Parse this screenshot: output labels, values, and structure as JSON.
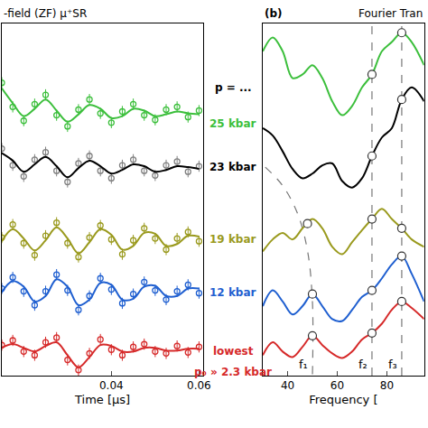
{
  "chart_data": [
    {
      "type": "scatter",
      "title": "-field (ZF) μ⁺SR",
      "x_label": "Time [μs]",
      "x": [
        0.015,
        0.0175,
        0.02,
        0.0225,
        0.025,
        0.0275,
        0.03,
        0.0325,
        0.035,
        0.0375,
        0.04,
        0.0425,
        0.045,
        0.0475,
        0.05,
        0.0525,
        0.055,
        0.0575,
        0.06
      ],
      "xlim": [
        0.015,
        0.061
      ],
      "xticks": [
        0.04,
        0.06
      ],
      "ylim": [
        0,
        38
      ],
      "tick_labels": "x",
      "grid": false,
      "series": [
        {
          "name": "25 kbar",
          "label_y": 27.2,
          "color": "#3cbf3c",
          "data_color": "#3cbf3c",
          "values": [
            31.0,
            29.4,
            28.0,
            28.8,
            29.8,
            28.6,
            27.4,
            28.2,
            29.2,
            28.8,
            27.8,
            28.0,
            28.8,
            28.6,
            28.0,
            28.2,
            28.5,
            28.3,
            28.2
          ],
          "data_values": [
            31.6,
            29.0,
            27.5,
            29.3,
            30.3,
            28.1,
            26.9,
            28.7,
            29.8,
            28.3,
            27.3,
            28.5,
            29.3,
            28.1,
            27.6,
            28.7,
            29.0,
            27.9,
            28.6
          ],
          "errors": [
            0.6,
            0.6,
            0.6,
            0.6,
            0.6,
            0.6,
            0.6,
            0.6,
            0.6,
            0.6,
            0.6,
            0.6,
            0.6,
            0.6,
            0.6,
            0.6,
            0.6,
            0.6,
            0.6
          ]
        },
        {
          "name": "23 kbar",
          "label_y": 22.5,
          "color": "#000000",
          "data_color": "#808080",
          "values": [
            24.0,
            23.2,
            22.0,
            22.8,
            23.6,
            22.6,
            21.4,
            22.4,
            23.2,
            22.6,
            21.8,
            22.2,
            22.8,
            22.6,
            22.0,
            22.2,
            22.6,
            22.5,
            22.3
          ],
          "data_values": [
            24.5,
            22.7,
            21.5,
            23.3,
            24.1,
            22.1,
            20.9,
            22.9,
            23.7,
            22.1,
            21.3,
            22.7,
            23.3,
            22.1,
            21.6,
            22.7,
            23.1,
            22.0,
            22.6
          ],
          "errors": [
            0.6,
            0.6,
            0.6,
            0.6,
            0.6,
            0.6,
            0.6,
            0.6,
            0.6,
            0.6,
            0.6,
            0.6,
            0.6,
            0.6,
            0.6,
            0.6,
            0.6,
            0.6,
            0.6
          ]
        },
        {
          "name": "19 kbar",
          "label_y": 14.7,
          "color": "#9a9a1e",
          "data_color": "#9a9a1e",
          "values": [
            14.5,
            15.8,
            14.8,
            13.5,
            14.6,
            16.0,
            14.8,
            13.2,
            14.4,
            15.8,
            15.2,
            13.6,
            14.0,
            15.4,
            15.3,
            14.0,
            14.2,
            15.1,
            15.0
          ],
          "data_values": [
            14.9,
            16.3,
            14.3,
            13.0,
            15.1,
            16.5,
            14.3,
            12.8,
            14.9,
            16.2,
            14.7,
            13.1,
            14.6,
            15.9,
            14.8,
            13.6,
            14.8,
            15.5,
            14.5
          ],
          "errors": [
            0.6,
            0.6,
            0.6,
            0.6,
            0.6,
            0.6,
            0.6,
            0.6,
            0.6,
            0.6,
            0.6,
            0.6,
            0.6,
            0.6,
            0.6,
            0.6,
            0.6,
            0.6,
            0.6
          ]
        },
        {
          "name": "12 kbar",
          "label_y": 9.0,
          "color": "#1f5fd0",
          "data_color": "#1f5fd0",
          "values": [
            9.0,
            10.2,
            9.6,
            8.0,
            8.6,
            10.4,
            9.6,
            7.6,
            8.2,
            10.0,
            9.8,
            8.2,
            8.3,
            9.6,
            9.7,
            8.6,
            8.6,
            9.4,
            9.4
          ],
          "data_values": [
            9.4,
            10.6,
            9.1,
            7.6,
            9.1,
            10.9,
            9.2,
            7.1,
            8.6,
            10.5,
            9.3,
            7.8,
            8.8,
            10.1,
            9.2,
            8.2,
            9.1,
            9.8,
            8.9
          ],
          "errors": [
            0.6,
            0.6,
            0.6,
            0.6,
            0.6,
            0.6,
            0.6,
            0.6,
            0.6,
            0.6,
            0.6,
            0.6,
            0.6,
            0.6,
            0.6,
            0.6,
            0.6,
            0.6,
            0.6
          ]
        },
        {
          "name": "lowest",
          "label_y": 2.6,
          "color": "#d62a2a",
          "data_color": "#d62a2a",
          "values": [
            3.0,
            3.4,
            3.0,
            2.6,
            3.2,
            3.6,
            2.2,
            0.9,
            2.0,
            3.3,
            3.2,
            2.6,
            2.6,
            3.0,
            3.0,
            2.7,
            2.7,
            2.9,
            2.9
          ],
          "data_values": [
            3.3,
            3.8,
            2.6,
            2.2,
            3.6,
            4.1,
            1.7,
            0.6,
            2.4,
            3.9,
            2.8,
            2.2,
            3.1,
            3.4,
            2.6,
            2.4,
            3.2,
            2.5,
            3.1
          ],
          "errors": [
            0.6,
            0.6,
            0.6,
            0.6,
            0.6,
            0.6,
            0.6,
            0.6,
            0.6,
            0.6,
            0.6,
            0.6,
            0.6,
            0.6,
            0.6,
            0.6,
            0.6,
            0.6,
            0.6
          ]
        }
      ],
      "notes": [
        {
          "text": "p = ...",
          "y": 31.1,
          "color": "#000000"
        },
        {
          "text": "p₀ » 2.3 kbar",
          "y": 0.4,
          "color": "#d62a2a"
        }
      ]
    },
    {
      "type": "line",
      "title": "Fourier Tran",
      "panel_label": "(b)",
      "x_label": "Frequency [",
      "x": [
        30,
        34,
        38,
        42,
        46,
        50,
        54,
        58,
        62,
        66,
        70,
        74,
        78,
        82,
        86,
        90,
        95
      ],
      "xlim": [
        30,
        95
      ],
      "xticks": [
        40,
        60,
        80
      ],
      "ylim": [
        0,
        38
      ],
      "tick_labels": "x",
      "grid": false,
      "series": [
        {
          "color": "#3cbf3c",
          "values": [
            35.0,
            36.5,
            35.0,
            32.1,
            32.5,
            33.5,
            32.1,
            29.6,
            28.1,
            29.1,
            31.1,
            32.5,
            35.0,
            36.0,
            37.0,
            36.0,
            33.5
          ],
          "peaks": {
            "x": [
              74,
              86
            ],
            "y": [
              32.5,
              37.0
            ]
          }
        },
        {
          "color": "#000000",
          "values": [
            26.7,
            25.9,
            24.2,
            22.3,
            21.3,
            21.8,
            22.7,
            22.9,
            21.0,
            20.3,
            21.3,
            23.7,
            25.7,
            26.7,
            29.8,
            31.1,
            29.6
          ],
          "peaks": {
            "x": [
              74,
              86
            ],
            "y": [
              23.7,
              29.8
            ]
          }
        },
        {
          "color": "#9a9a1e",
          "values": [
            13.4,
            14.7,
            15.4,
            14.7,
            15.9,
            16.9,
            15.9,
            13.9,
            13.1,
            14.4,
            15.7,
            16.9,
            18.0,
            16.9,
            15.9,
            14.7,
            13.9
          ],
          "peaks": {
            "x": [
              48,
              74,
              86
            ],
            "y": [
              16.4,
              16.9,
              15.9
            ]
          }
        },
        {
          "color": "#1f5fd0",
          "values": [
            7.5,
            9.2,
            8.0,
            6.6,
            7.5,
            8.8,
            7.5,
            6.1,
            5.9,
            7.1,
            8.5,
            9.2,
            10.5,
            12.0,
            12.9,
            11.0,
            8.0
          ],
          "peaks": {
            "x": [
              50,
              74,
              86
            ],
            "y": [
              8.8,
              9.2,
              12.9
            ]
          }
        },
        {
          "color": "#d62a2a",
          "values": [
            2.2,
            3.6,
            2.6,
            2.0,
            3.1,
            4.3,
            3.3,
            2.4,
            1.9,
            2.6,
            3.9,
            4.6,
            5.6,
            7.1,
            8.0,
            7.3,
            6.1
          ],
          "peaks": {
            "x": [
              50,
              74,
              86
            ],
            "y": [
              4.3,
              4.6,
              8.0
            ]
          }
        }
      ],
      "guides": [
        {
          "label": "f₁",
          "x": [
            31,
            38,
            44,
            48,
            50,
            50
          ],
          "y": [
            22.5,
            20.5,
            17.5,
            13.5,
            8.0,
            0
          ]
        },
        {
          "label": "f₂",
          "x": [
            74,
            74
          ],
          "y": [
            0,
            38
          ]
        },
        {
          "label": "f₃",
          "x": [
            86,
            86
          ],
          "y": [
            0,
            38
          ]
        }
      ]
    }
  ]
}
